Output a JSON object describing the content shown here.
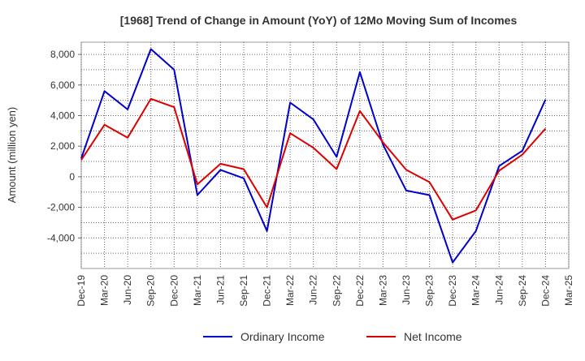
{
  "chart_data": {
    "type": "line",
    "title": "[1968]  Trend of Change in Amount (YoY) of 12Mo Moving Sum of Incomes",
    "xlabel": "",
    "ylabel": "Amount (million yen)",
    "ylim": [
      -6000,
      8800
    ],
    "yticks": [
      -4000,
      -2000,
      0,
      2000,
      4000,
      6000,
      8000
    ],
    "ytick_labels": [
      "-4,000",
      "-2,000",
      "0",
      "2,000",
      "4,000",
      "6,000",
      "8,000"
    ],
    "categories": [
      "Dec-19",
      "Mar-20",
      "Jun-20",
      "Sep-20",
      "Dec-20",
      "Mar-21",
      "Jun-21",
      "Sep-21",
      "Dec-21",
      "Mar-22",
      "Jun-22",
      "Sep-22",
      "Dec-22",
      "Mar-23",
      "Jun-23",
      "Sep-23",
      "Dec-23",
      "Mar-24",
      "Jun-24",
      "Sep-24",
      "Dec-24",
      "Mar-25"
    ],
    "grid": true,
    "legend_position": "bottom-center",
    "series": [
      {
        "name": "Ordinary Income",
        "color": "#0000cc",
        "values": [
          1200,
          5600,
          4400,
          8350,
          7000,
          -1200,
          450,
          -100,
          -3550,
          4850,
          3750,
          1300,
          6850,
          2100,
          -900,
          -1200,
          -5600,
          -3550,
          700,
          1700,
          5050,
          null
        ]
      },
      {
        "name": "Net Income",
        "color": "#dd0000",
        "values": [
          1100,
          3400,
          2550,
          5100,
          4550,
          -500,
          850,
          500,
          -2000,
          2850,
          1900,
          500,
          4300,
          2250,
          450,
          -350,
          -2800,
          -2200,
          400,
          1450,
          3150,
          null
        ]
      }
    ]
  }
}
